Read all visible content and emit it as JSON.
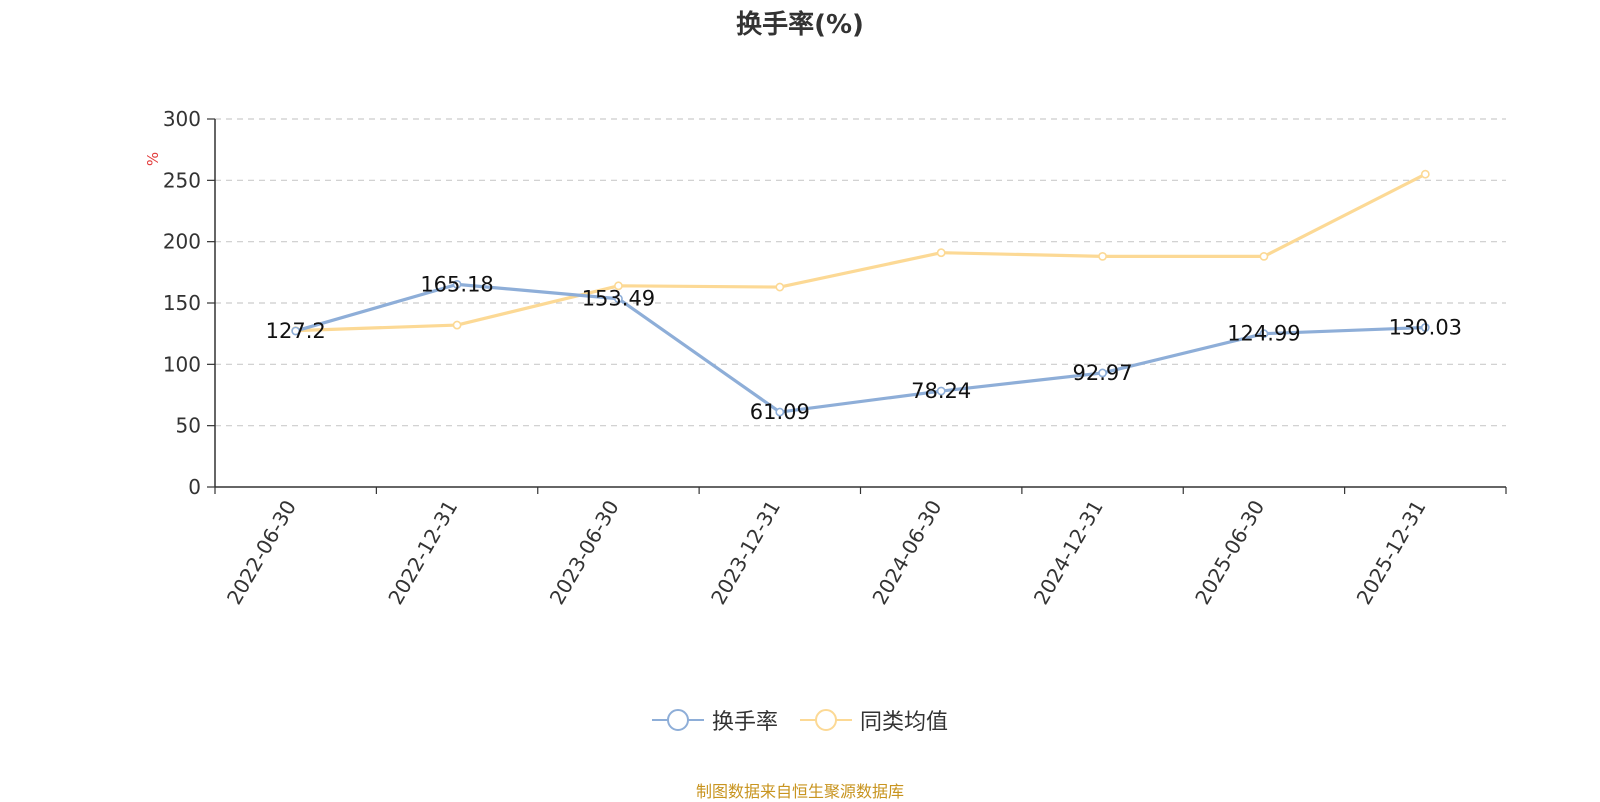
{
  "chart_data": {
    "type": "line",
    "title": "换手率(%)",
    "ylabel": "%",
    "ylim": [
      0,
      300
    ],
    "yticks": [
      0,
      50,
      100,
      150,
      200,
      250,
      300
    ],
    "grid": true,
    "legend_position": "bottom-center",
    "categories": [
      "2022-06-30",
      "2022-12-31",
      "2023-06-30",
      "2023-12-31",
      "2024-06-30",
      "2024-12-31",
      "2025-06-30",
      "2025-12-31"
    ],
    "series": [
      {
        "name": "换手率",
        "color": "#8eaed8",
        "values": [
          127.2,
          165.18,
          153.49,
          61.09,
          78.24,
          92.97,
          124.99,
          130.03
        ],
        "labels": [
          "127.2",
          "165.18",
          "153.49",
          "61.09",
          "78.24",
          "92.97",
          "124.99",
          "130.03"
        ]
      },
      {
        "name": "同类均值",
        "color": "#fcd995",
        "values": [
          127.5,
          132,
          164,
          163,
          191,
          188,
          188,
          255
        ]
      }
    ]
  },
  "source_note": "制图数据来自恒生聚源数据库",
  "colors": {
    "axis": "#333333",
    "grid": "#cccccc",
    "ylabel": "#e23b3b",
    "source": "#c8941f"
  }
}
